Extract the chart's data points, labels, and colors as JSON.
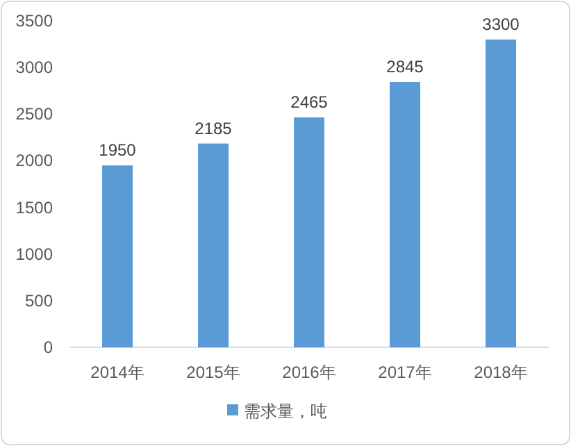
{
  "chart_data": {
    "type": "bar",
    "categories": [
      "2014年",
      "2015年",
      "2016年",
      "2017年",
      "2018年"
    ],
    "series": [
      {
        "name": "需求量，吨",
        "color": "#5b9bd5",
        "values": [
          1950,
          2185,
          2465,
          2845,
          3300
        ]
      }
    ],
    "ylim": [
      0,
      3500
    ],
    "yticks": [
      0,
      500,
      1000,
      1500,
      2000,
      2500,
      3000,
      3500
    ],
    "data_labels": true,
    "legend": "bottom",
    "grid": false
  }
}
